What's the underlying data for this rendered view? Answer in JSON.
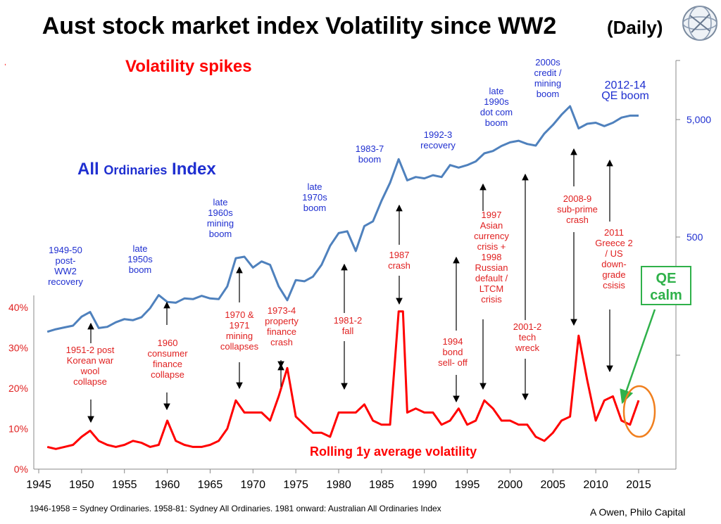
{
  "title": "Aust stock market index Volatility since WW2",
  "subtitle": "(Daily)",
  "labels": {
    "spikes": "Volatility spikes",
    "index_a": "All ",
    "index_b": "Ordinaries",
    "index_c": " Index",
    "rolling": "Rolling 1y average volatility",
    "qe_calm": [
      "QE",
      "calm"
    ]
  },
  "footnote": "1946-1958 = Sydney Ordinaries. 1958-81: Sydney All Ordinaries.  1981 onward: Australian All Ordinaries Index",
  "credit": "A Owen, Philo Capital",
  "index_annotations": [
    {
      "text": [
        "1949-50",
        "post-",
        "WW2",
        "recovery"
      ]
    },
    {
      "text": [
        "late",
        "1950s",
        "boom"
      ]
    },
    {
      "text": [
        "late",
        "1960s",
        "mining",
        "boom"
      ]
    },
    {
      "text": [
        "late",
        "1970s",
        "boom"
      ]
    },
    {
      "text": [
        "1983-7",
        "boom"
      ]
    },
    {
      "text": [
        "1992-3",
        "recovery"
      ]
    },
    {
      "text": [
        "late",
        "1990s",
        "dot com",
        "boom"
      ]
    },
    {
      "text": [
        "2000s",
        "credit /",
        "mining",
        "boom"
      ]
    },
    {
      "text": [
        "2012-14",
        "QE boom"
      ]
    }
  ],
  "vol_annotations": [
    {
      "text": [
        "1951-2 post",
        "Korean war",
        "wool",
        "collapse"
      ]
    },
    {
      "text": [
        "1960",
        "consumer",
        "finance",
        "collapse"
      ]
    },
    {
      "text": [
        "1970 &",
        "1971",
        "mining",
        "collapses"
      ]
    },
    {
      "text": [
        "1973-4",
        "property",
        "finance",
        "crash"
      ]
    },
    {
      "text": [
        "1981-2",
        "fall"
      ]
    },
    {
      "text": [
        "1987",
        "crash"
      ]
    },
    {
      "text": [
        "1994",
        "bond",
        "sell- off"
      ]
    },
    {
      "text": [
        "1997",
        "Asian",
        "currency",
        "crisis +",
        "1998",
        "Russian",
        "default /",
        "LTCM",
        "crisis"
      ]
    },
    {
      "text": [
        "2001-2",
        "tech",
        "wreck"
      ]
    },
    {
      "text": [
        "2008-9",
        "sub-prime",
        "crash"
      ]
    },
    {
      "text": [
        "2011",
        "Greece 2",
        "/ US",
        "down-",
        "grade",
        "csisis"
      ]
    }
  ],
  "colors": {
    "index": "#4f81bd",
    "volatility": "#ff0000",
    "qe": "#2fb14a",
    "ellipse": "#f07f1e",
    "annot_blue": "#1f2fd0",
    "annot_red": "#e02020"
  },
  "chart_data": [
    {
      "type": "line",
      "name": "All Ordinaries Index",
      "x_axis": {
        "min": 1945,
        "max": 2015,
        "ticks": [
          "1945",
          "1950",
          "1955",
          "1960",
          "1965",
          "1970",
          "1975",
          "1980",
          "1985",
          "1990",
          "1995",
          "2000",
          "2005",
          "2010",
          "2015"
        ]
      },
      "y_axis_right": {
        "scale": "log",
        "ticks": [
          "500",
          "5,000"
        ]
      },
      "x": [
        1946,
        1947,
        1948,
        1949,
        1950,
        1951,
        1952,
        1953,
        1954,
        1955,
        1956,
        1957,
        1958,
        1959,
        1960,
        1961,
        1962,
        1963,
        1964,
        1965,
        1966,
        1967,
        1968,
        1969,
        1970,
        1971,
        1972,
        1973,
        1974,
        1975,
        1976,
        1977,
        1978,
        1979,
        1980,
        1981,
        1982,
        1983,
        1984,
        1985,
        1986,
        1987,
        1988,
        1989,
        1990,
        1991,
        1992,
        1993,
        1994,
        1995,
        1996,
        1997,
        1998,
        1999,
        2000,
        2001,
        2002,
        2003,
        2004,
        2005,
        2006,
        2007,
        2008,
        2009,
        2010,
        2011,
        2012,
        2013,
        2014,
        2015
      ],
      "y": [
        78,
        82,
        85,
        88,
        105,
        115,
        84,
        86,
        94,
        100,
        98,
        104,
        124,
        160,
        140,
        138,
        150,
        148,
        158,
        150,
        148,
        190,
        330,
        340,
        275,
        310,
        290,
        190,
        145,
        215,
        210,
        230,
        290,
        420,
        540,
        560,
        380,
        620,
        680,
        1020,
        1450,
        2300,
        1520,
        1620,
        1580,
        1680,
        1620,
        2050,
        1950,
        2050,
        2200,
        2580,
        2700,
        2980,
        3200,
        3300,
        3100,
        3000,
        3800,
        4500,
        5500,
        6500,
        4200,
        4600,
        4700,
        4400,
        4700,
        5200,
        5400,
        5400
      ]
    },
    {
      "type": "line",
      "name": "Rolling 1y average volatility",
      "y_axis_left": {
        "min": 0,
        "max": 40,
        "ticks": [
          "0%",
          "10%",
          "20%",
          "30%",
          "40%"
        ]
      },
      "x": [
        1946,
        1947,
        1948,
        1949,
        1950,
        1951,
        1952,
        1953,
        1954,
        1955,
        1956,
        1957,
        1958,
        1959,
        1960,
        1961,
        1962,
        1963,
        1964,
        1965,
        1966,
        1967,
        1968,
        1969,
        1970,
        1971,
        1972,
        1973,
        1974,
        1975,
        1976,
        1977,
        1978,
        1979,
        1980,
        1981,
        1982,
        1983,
        1984,
        1985,
        1986,
        1987,
        1987.5,
        1988,
        1989,
        1990,
        1991,
        1992,
        1993,
        1994,
        1995,
        1996,
        1997,
        1998,
        1999,
        2000,
        2001,
        2002,
        2003,
        2004,
        2005,
        2006,
        2007,
        2008,
        2009,
        2010,
        2011,
        2012,
        2013,
        2014,
        2015
      ],
      "y": [
        5.5,
        5,
        5.5,
        6,
        8,
        9.5,
        7,
        6,
        5.5,
        6,
        7,
        6.5,
        5.5,
        6,
        12,
        7,
        6,
        5.5,
        5.5,
        6,
        7,
        10,
        17,
        14,
        14,
        14,
        12,
        18,
        25,
        13,
        11,
        9,
        9,
        8,
        14,
        14,
        14,
        16,
        12,
        11,
        11,
        39,
        39,
        14,
        15,
        14,
        14,
        11,
        12,
        15,
        11,
        12,
        17,
        15,
        12,
        12,
        11,
        11,
        8,
        7,
        9,
        12,
        13,
        33,
        22,
        12,
        17,
        18,
        12,
        11,
        17
      ]
    }
  ]
}
